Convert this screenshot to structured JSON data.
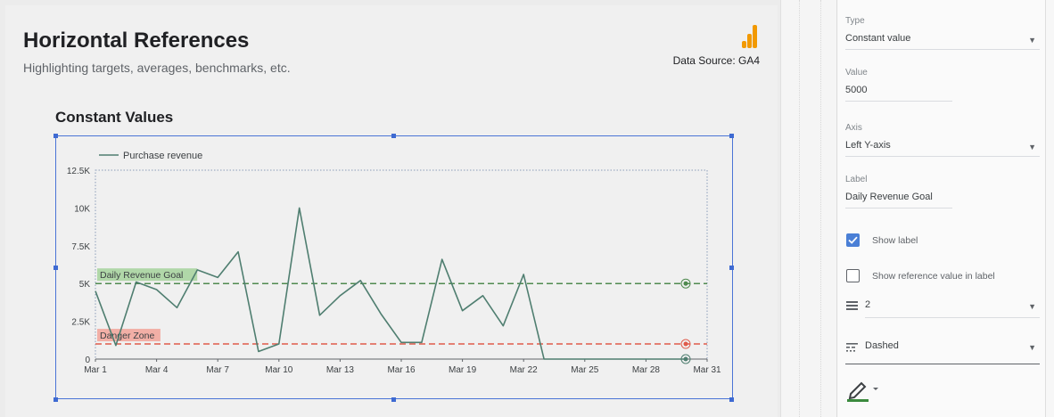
{
  "report": {
    "title": "Horizontal References",
    "subtitle": "Highlighting targets, averages, benchmarks, etc.",
    "data_source": "Data Source: GA4"
  },
  "chart_title": "Constant Values",
  "chart_data": {
    "type": "line",
    "legend": "Purchase revenue",
    "x_ticks": [
      "Mar 1",
      "Mar 4",
      "Mar 7",
      "Mar 10",
      "Mar 13",
      "Mar 16",
      "Mar 19",
      "Mar 22",
      "Mar 25",
      "Mar 28",
      "Mar 31"
    ],
    "y_ticks": [
      "0",
      "2.5K",
      "5K",
      "7.5K",
      "10K",
      "12.5K"
    ],
    "ylim": [
      0,
      12500
    ],
    "xlim": [
      1,
      31
    ],
    "series": [
      {
        "name": "Purchase revenue",
        "color": "#4f7e70",
        "x": [
          1,
          2,
          3,
          4,
          5,
          6,
          7,
          8,
          9,
          10,
          11,
          12,
          13,
          14,
          15,
          16,
          17,
          18,
          19,
          20,
          21,
          22,
          23,
          24,
          25,
          26,
          27,
          28,
          29,
          30
        ],
        "y": [
          4500,
          900,
          5100,
          4600,
          3400,
          5900,
          5400,
          7100,
          500,
          1000,
          10000,
          2900,
          4200,
          5200,
          3000,
          1100,
          1100,
          6600,
          3200,
          4200,
          2200,
          5600,
          0,
          0,
          0,
          0,
          0,
          0,
          0,
          0
        ]
      }
    ],
    "references": [
      {
        "label": "Daily Revenue Goal",
        "value": 5000,
        "color": "#4f8a4f",
        "label_bg": "#a8d4a0"
      },
      {
        "label": "Danger Zone",
        "value": 1000,
        "color": "#e05a4a",
        "label_bg": "#f2a79d"
      }
    ]
  },
  "panel": {
    "type": {
      "label": "Type",
      "value": "Constant value"
    },
    "value": {
      "label": "Value",
      "value": "5000"
    },
    "axis": {
      "label": "Axis",
      "value": "Left Y-axis"
    },
    "label_field": {
      "label": "Label",
      "value": "Daily Revenue Goal"
    },
    "show_label": "Show label",
    "show_ref_value": "Show reference value in label",
    "weight": "2",
    "style": "Dashed"
  },
  "colors": {
    "accent": "#4a74d6",
    "checkbox": "#4a7fd6",
    "pen": "#3b8a3e"
  }
}
